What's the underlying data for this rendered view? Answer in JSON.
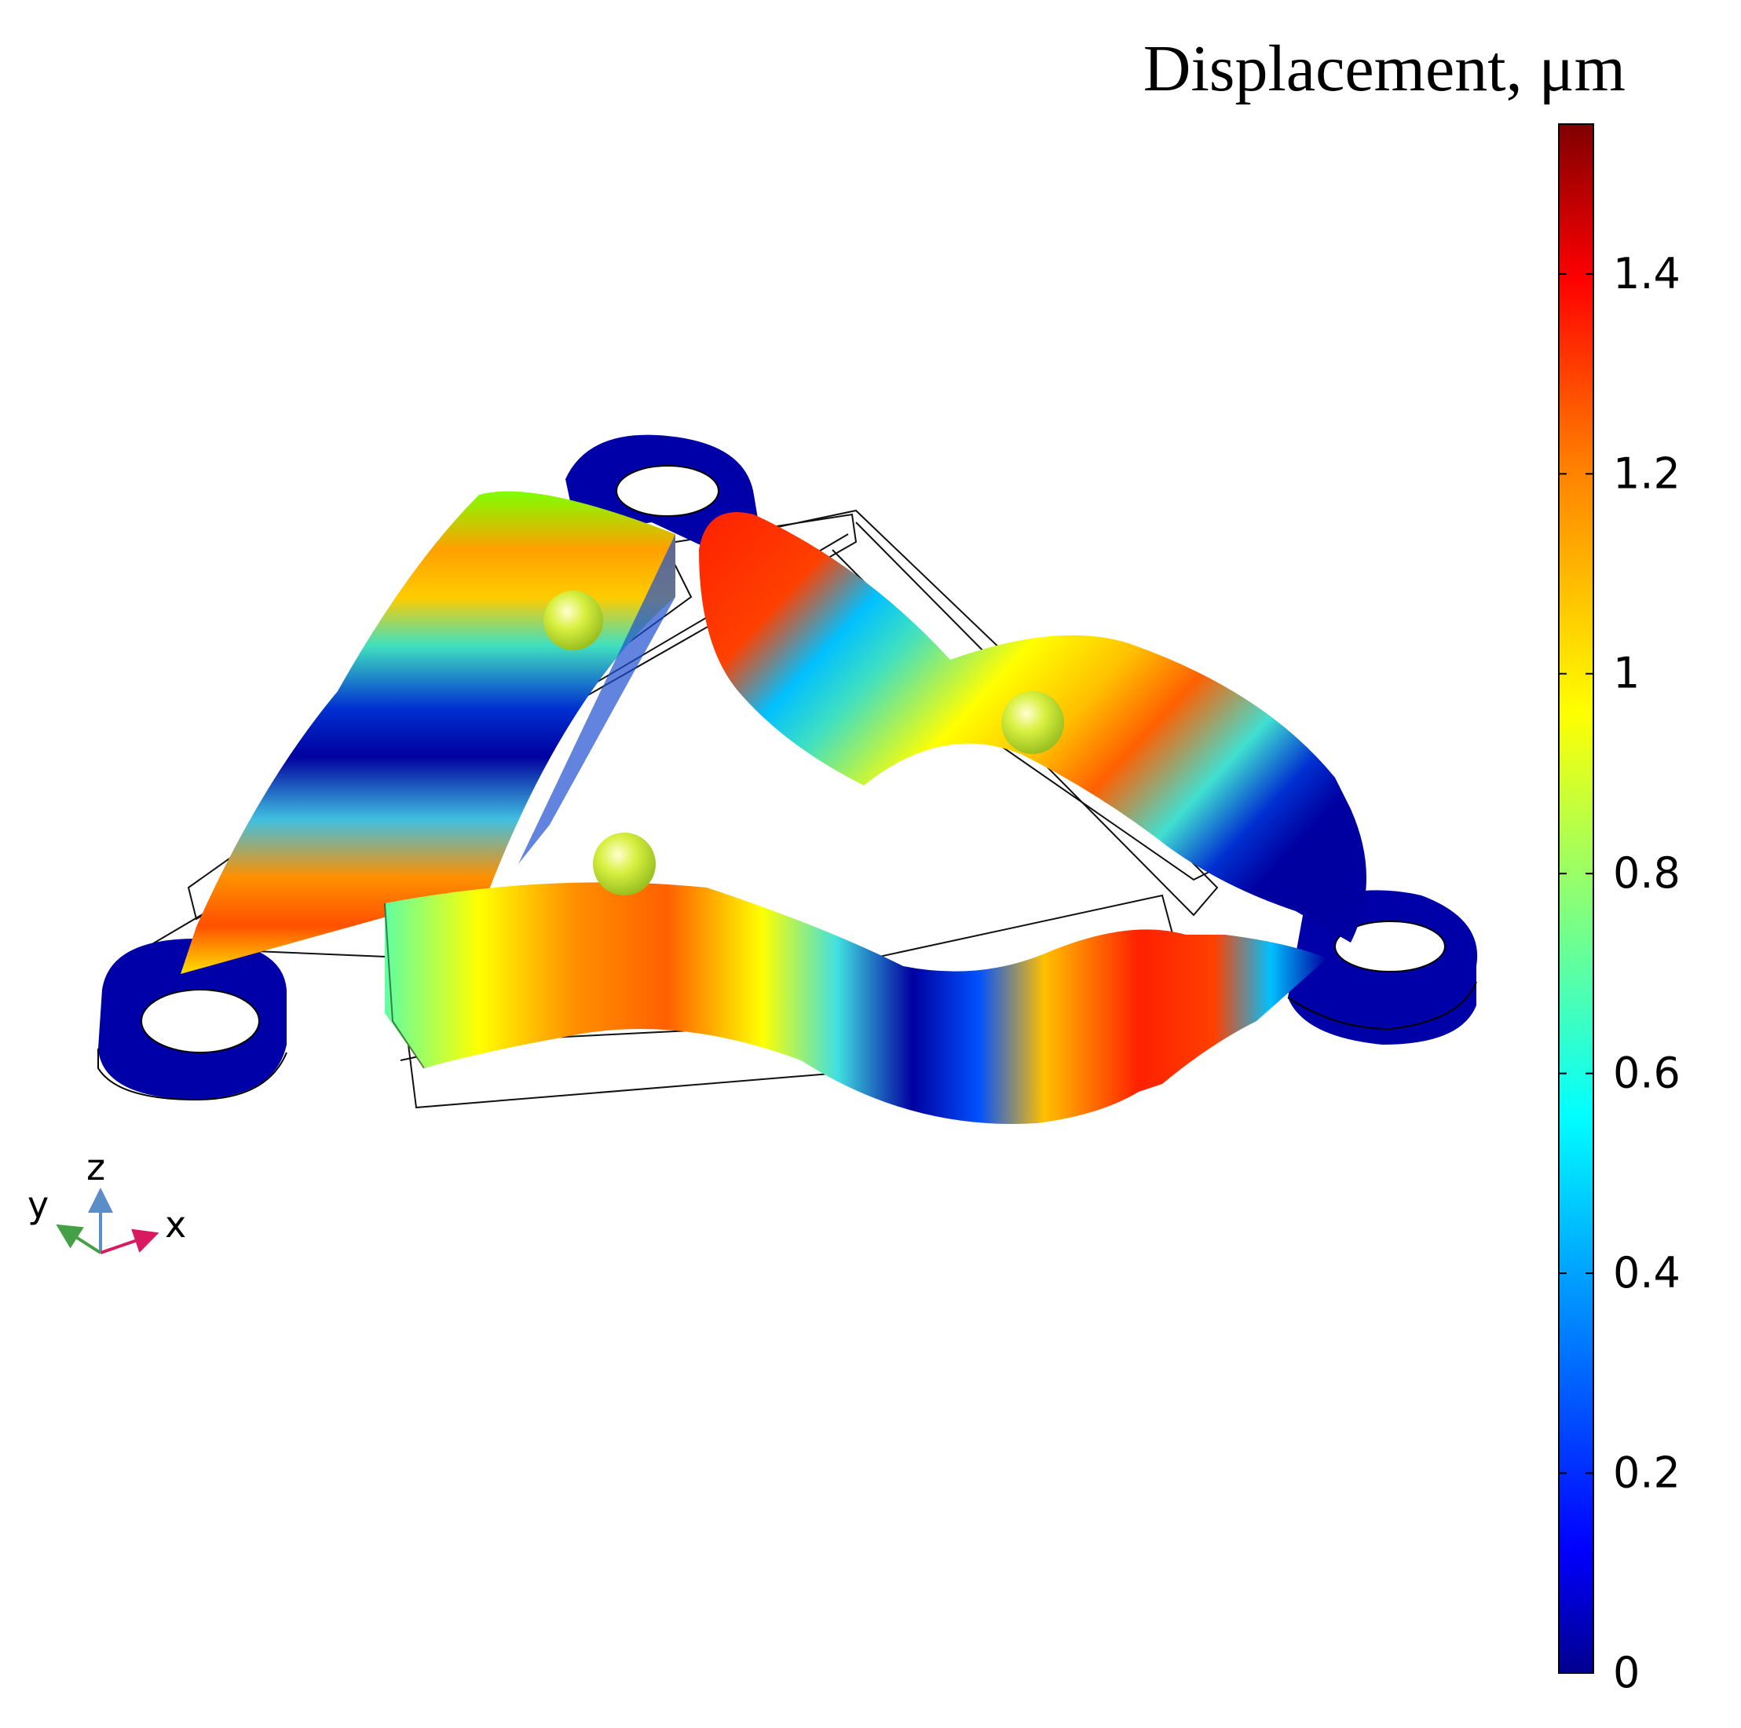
{
  "colorbar": {
    "title": "Displacement, μm",
    "min": 0,
    "max": 1.55,
    "ticks": [
      {
        "value": 0,
        "label": "0"
      },
      {
        "value": 0.2,
        "label": "0.2"
      },
      {
        "value": 0.4,
        "label": "0.4"
      },
      {
        "value": 0.6,
        "label": "0.6"
      },
      {
        "value": 0.8,
        "label": "0.8"
      },
      {
        "value": 1,
        "label": "1"
      },
      {
        "value": 1.2,
        "label": "1.2"
      },
      {
        "value": 1.4,
        "label": "1.4"
      }
    ],
    "colormap": "jet"
  },
  "axes_triad": {
    "x_label": "x",
    "y_label": "y",
    "z_label": "z",
    "x_color": "#d81b60",
    "y_color": "#43a047",
    "z_color": "#5b8ec9"
  },
  "colors": {
    "jet_0": "#00008f",
    "jet_1": "#0000ff",
    "jet_2": "#00ffff",
    "jet_3": "#ffff00",
    "jet_4": "#ff7f00",
    "jet_5": "#ff0000",
    "jet_6": "#800000"
  }
}
